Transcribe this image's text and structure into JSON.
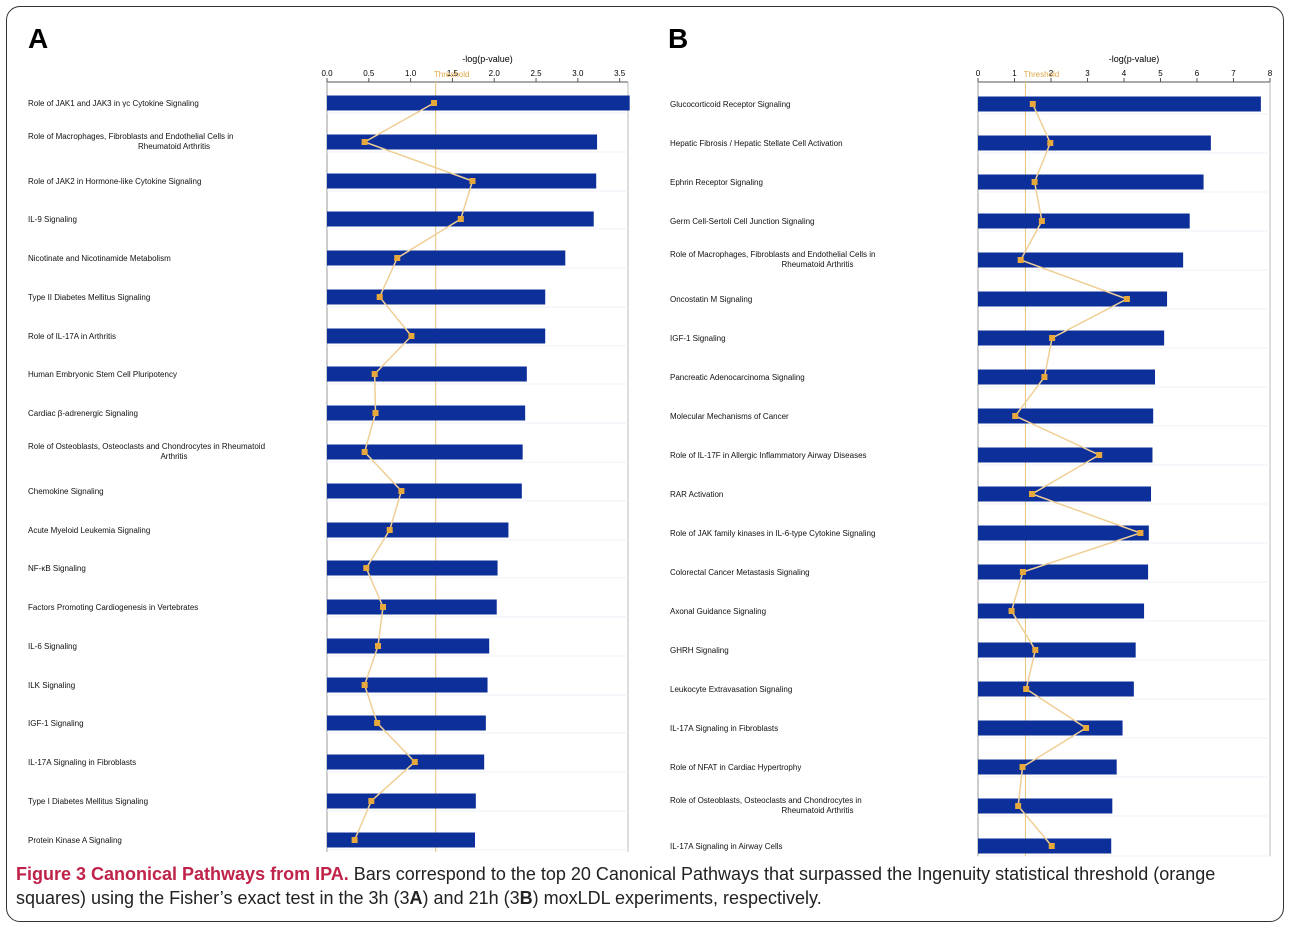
{
  "chart_data": [
    {
      "panel": "A",
      "type": "bar",
      "orientation": "horizontal",
      "xlabel": "-log(p-value)",
      "xlim": [
        0,
        3.6
      ],
      "ticks": [
        "0.0",
        "0.5",
        "1.0",
        "1.5",
        "2.0",
        "2.5",
        "3.0",
        "3.5"
      ],
      "threshold_label": "Threshold",
      "threshold_value": 1.3,
      "bar_color": "#0d2f99",
      "ratio_color": "#e8a93c",
      "categories": [
        "Role of JAK1 and JAK3 in γc Cytokine Signaling",
        "Role of Macrophages, Fibroblasts and Endothelial Cells in Rheumatoid Arthritis",
        "Role of JAK2 in Hormone-like Cytokine Signaling",
        "IL-9 Signaling",
        "Nicotinate and Nicotinamide Metabolism",
        "Type II Diabetes Mellitus Signaling",
        "Role of IL-17A in Arthritis",
        "Human Embryonic Stem Cell Pluripotency",
        "Cardiac β-adrenergic Signaling",
        "Role of Osteoblasts, Osteoclasts and Chondrocytes in Rheumatoid Arthritis",
        "Chemokine Signaling",
        "Acute Myeloid Leukemia Signaling",
        "NF-κB Signaling",
        "Factors Promoting Cardiogenesis in Vertebrates",
        "IL-6 Signaling",
        "ILK Signaling",
        "IGF-1 Signaling",
        "IL-17A Signaling in Fibroblasts",
        "Type I Diabetes Mellitus Signaling",
        "Protein Kinase A Signaling"
      ],
      "values": [
        3.62,
        3.23,
        3.22,
        3.19,
        2.85,
        2.61,
        2.61,
        2.39,
        2.37,
        2.34,
        2.33,
        2.17,
        2.04,
        2.03,
        1.94,
        1.92,
        1.9,
        1.88,
        1.78,
        1.77
      ],
      "ratio_positions": [
        1.28,
        0.45,
        1.74,
        1.6,
        0.84,
        0.63,
        1.01,
        0.57,
        0.58,
        0.45,
        0.89,
        0.75,
        0.47,
        0.67,
        0.61,
        0.45,
        0.6,
        1.05,
        0.53,
        0.33
      ]
    },
    {
      "panel": "B",
      "type": "bar",
      "orientation": "horizontal",
      "xlabel": "-log(p-value)",
      "xlim": [
        0,
        8
      ],
      "ticks": [
        "0",
        "1",
        "2",
        "3",
        "4",
        "5",
        "6",
        "7",
        "8"
      ],
      "threshold_label": "Threshold",
      "threshold_value": 1.3,
      "bar_color": "#0d2f99",
      "ratio_color": "#e8a93c",
      "categories": [
        "Glucocorticoid Receptor Signaling",
        "Hepatic Fibrosis / Hepatic Stellate Cell Activation",
        "Ephrin Receptor Signaling",
        "Germ Cell-Sertoli Cell Junction Signaling",
        "Role of Macrophages, Fibroblasts and Endothelial Cells in Rheumatoid Arthritis",
        "Oncostatin M Signaling",
        "IGF-1 Signaling",
        "Pancreatic Adenocarcinoma Signaling",
        "Molecular Mechanisms of Cancer",
        "Role of IL-17F in Allergic Inflammatory Airway Diseases",
        "RAR Activation",
        "Role of JAK family kinases in IL-6-type Cytokine Signaling",
        "Colorectal Cancer Metastasis Signaling",
        "Axonal Guidance Signaling",
        "GHRH Signaling",
        "Leukocyte Extravasation Signaling",
        "IL-17A Signaling in Fibroblasts",
        "Role of NFAT in Cardiac Hypertrophy",
        "Role of Osteoblasts, Osteoclasts and Chondrocytes in Rheumatoid Arthritis",
        "IL-17A Signaling in Airway Cells"
      ],
      "values": [
        7.75,
        6.38,
        6.18,
        5.8,
        5.62,
        5.18,
        5.1,
        4.85,
        4.8,
        4.78,
        4.74,
        4.68,
        4.66,
        4.55,
        4.32,
        4.27,
        3.96,
        3.8,
        3.68,
        3.65
      ],
      "ratio_positions": [
        1.5,
        1.98,
        1.55,
        1.75,
        1.17,
        4.08,
        2.03,
        1.82,
        1.02,
        3.32,
        1.48,
        4.45,
        1.23,
        0.92,
        1.57,
        1.32,
        2.96,
        1.22,
        1.1,
        2.02
      ]
    }
  ],
  "panels": {
    "a_letter": "A",
    "b_letter": "B"
  },
  "caption": {
    "title": "Figure 3 Canonical Pathways from IPA.",
    "text_1": " Bars correspond to the top 20 Canonical Pathways that surpassed the Ingenuity statistical threshold (orange squares) using the Fisher’s exact test in the 3h (3",
    "bold_a": "A",
    "text_2": ") and 21h (3",
    "bold_b": "B",
    "text_3": ") moxLDL experiments, respectively."
  }
}
